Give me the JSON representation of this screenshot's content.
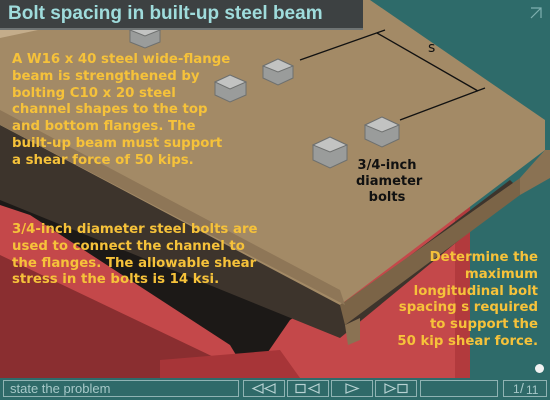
{
  "header": {
    "title": "Bolt spacing in built-up steel beam"
  },
  "problem": {
    "paragraph1": [
      "A W16 x 40 steel wide-flange",
      "beam is strengthened by",
      "bolting C10 x 20 steel",
      "channel shapes to the top",
      "and bottom flanges.  The",
      "built-up beam must support",
      "a shear force of 50 kips."
    ],
    "paragraph2": [
      "3/4-inch diameter steel bolts are",
      "used to connect the channel to",
      "the flanges.  The allowable shear",
      "stress in the bolts is 14 ksi."
    ],
    "paragraph3": [
      "Determine the",
      "maximum",
      "longitudinal bolt",
      "spacing s required",
      "to support the",
      "50 kip shear force."
    ]
  },
  "figure": {
    "bolt_label": [
      "3/4-inch",
      "diameter",
      "bolts"
    ],
    "spacing_label": "s"
  },
  "navigation": {
    "status": "state the problem",
    "page_current": "1",
    "page_total": "11",
    "page_separator": "/",
    "icons": {
      "first": "first-page-icon",
      "prev": "previous-page-icon",
      "next": "next-page-icon",
      "last": "last-page-icon",
      "corner": "corner-arrow-icon"
    }
  },
  "colors": {
    "background": "#2e6b6a",
    "title_text": "#9fdcdc",
    "body_text": "#f6c23a",
    "channel": "#a38a66",
    "beam_web": "#c4484a",
    "bolt": "#9a9c9b"
  }
}
